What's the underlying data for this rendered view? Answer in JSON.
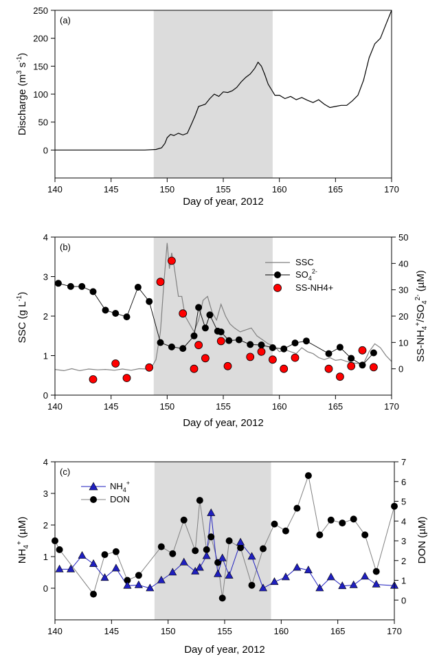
{
  "chart_data": [
    {
      "type": "line",
      "panel_label": "(a)",
      "xlabel": "Day of year, 2012",
      "ylabel": "Discharge (m3 s-1)",
      "ylabel_parts": {
        "base": "Discharge (m",
        "sup1": "3",
        "mid": " s",
        "sup2": "-1",
        "end": ")"
      },
      "xlim": [
        140,
        170
      ],
      "ylim": [
        -50,
        250
      ],
      "xticks": [
        140,
        145,
        150,
        155,
        160,
        165,
        170
      ],
      "yticks": [
        0,
        50,
        100,
        150,
        200,
        250
      ],
      "shaded_region": [
        148.8,
        159.4
      ],
      "series": [
        {
          "color": "#000000",
          "x": [
            140,
            142,
            144,
            146,
            148,
            149,
            149.5,
            149.8,
            150.0,
            150.3,
            150.6,
            151.0,
            151.4,
            151.8,
            152.2,
            152.5,
            152.8,
            153.1,
            153.4,
            153.8,
            154.2,
            154.6,
            155.0,
            155.4,
            155.8,
            156.2,
            156.6,
            157.0,
            157.4,
            157.8,
            158.1,
            158.4,
            158.7,
            159.0,
            159.3,
            159.6,
            160.0,
            160.5,
            161.0,
            161.5,
            162.0,
            162.5,
            163.0,
            163.5,
            164.0,
            164.5,
            165.0,
            165.5,
            166.0,
            166.5,
            167.0,
            167.5,
            168.0,
            168.5,
            169.0,
            169.5,
            170.0
          ],
          "y": [
            0,
            0,
            0,
            0,
            0,
            1,
            4,
            12,
            22,
            28,
            26,
            30,
            27,
            30,
            48,
            62,
            78,
            80,
            82,
            92,
            100,
            96,
            104,
            103,
            106,
            112,
            122,
            130,
            136,
            146,
            157,
            150,
            135,
            118,
            108,
            98,
            98,
            92,
            96,
            90,
            94,
            89,
            85,
            90,
            82,
            76,
            78,
            80,
            80,
            88,
            98,
            125,
            165,
            190,
            200,
            225,
            250
          ]
        }
      ]
    },
    {
      "type": "line+scatter",
      "panel_label": "(b)",
      "xlabel": "Day of year, 2012",
      "ylabel_left": "SSC (g L-1)",
      "ylabel_left_parts": {
        "base": "SSC (g L",
        "sup": "-1",
        "end": ")"
      },
      "ylabel_right": "SS-NH4+/SO42- (µM)",
      "ylabel_right_parts": {
        "a": "SS-NH",
        "a_sub": "4",
        "a_sup": "+",
        "b": "/SO",
        "b_sub": "4",
        "b_sup": "2-",
        "c": " (µM)"
      },
      "xlim": [
        140,
        170
      ],
      "ylim_left": [
        0,
        4
      ],
      "ylim_right": [
        -10,
        50
      ],
      "xticks": [
        140,
        145,
        150,
        155,
        160,
        165,
        170
      ],
      "yticks_left": [
        0,
        1,
        2,
        3,
        4
      ],
      "yticks_right": [
        0,
        10,
        20,
        30,
        40,
        50
      ],
      "shaded_region": [
        148.8,
        159.4
      ],
      "legend": [
        {
          "label": "SSC",
          "kind": "line"
        },
        {
          "label": "SO42-",
          "label_parts": {
            "base": "SO",
            "sub": "4",
            "sup": "2-"
          },
          "kind": "line-marker"
        },
        {
          "label": "SS-NH4+",
          "kind": "marker"
        }
      ],
      "series": [
        {
          "name": "SSC",
          "axis": "left",
          "color": "#808080",
          "x": [
            140,
            140.8,
            141.5,
            142.2,
            143,
            143.8,
            144.5,
            145.3,
            146,
            146.8,
            147.5,
            148.2,
            148.6,
            149.0,
            149.4,
            149.7,
            150.0,
            150.2,
            150.4,
            150.6,
            150.8,
            151.0,
            151.3,
            151.6,
            152.0,
            152.4,
            152.8,
            153.2,
            153.6,
            154.0,
            154.4,
            154.8,
            155.2,
            155.6,
            156.0,
            156.5,
            157.0,
            157.5,
            158.0,
            158.5,
            159.0,
            159.5,
            160.0,
            160.5,
            161.0,
            161.5,
            162.0,
            162.5,
            163.0,
            163.5,
            164.0,
            164.5,
            165.0,
            165.5,
            166.0,
            166.5,
            167.0,
            167.5,
            168.0,
            168.5,
            169.0,
            169.5,
            170.0
          ],
          "y": [
            0.65,
            0.62,
            0.67,
            0.62,
            0.66,
            0.64,
            0.65,
            0.63,
            0.66,
            0.63,
            0.67,
            0.66,
            0.7,
            0.9,
            1.6,
            2.8,
            3.85,
            3.2,
            3.6,
            3.3,
            2.9,
            2.5,
            2.5,
            2.0,
            1.8,
            1.6,
            1.9,
            2.4,
            2.5,
            2.1,
            1.9,
            2.3,
            2.0,
            1.8,
            1.7,
            1.6,
            1.65,
            1.7,
            1.5,
            1.4,
            1.3,
            1.25,
            1.1,
            1.15,
            1.1,
            1.05,
            1.2,
            1.1,
            1.05,
            0.95,
            0.9,
            0.95,
            0.88,
            0.9,
            0.85,
            0.82,
            0.8,
            0.8,
            1.1,
            1.3,
            1.2,
            1.0,
            0.85
          ]
        },
        {
          "name": "SO42-",
          "axis": "left",
          "color": "#000000",
          "marker": "circle",
          "x": [
            140.3,
            141.4,
            142.4,
            143.4,
            144.5,
            145.4,
            146.4,
            147.4,
            148.4,
            149.4,
            150.4,
            151.4,
            152.4,
            152.8,
            153.4,
            153.8,
            154.5,
            154.8,
            155.5,
            156.4,
            157.4,
            158.4,
            159.4,
            160.4,
            161.4,
            162.4,
            164.4,
            165.4,
            166.4,
            167.4,
            168.4
          ],
          "y": [
            2.83,
            2.75,
            2.75,
            2.62,
            2.15,
            2.07,
            1.98,
            2.73,
            2.37,
            1.33,
            1.22,
            1.18,
            1.5,
            2.22,
            1.7,
            2.03,
            1.62,
            1.6,
            1.38,
            1.4,
            1.28,
            1.27,
            1.2,
            1.17,
            1.32,
            1.37,
            1.05,
            1.21,
            0.93,
            0.76,
            1.07
          ]
        },
        {
          "name": "SS-NH4+",
          "axis": "right",
          "color": "#ff0000",
          "marker": "circle",
          "x": [
            143.4,
            145.4,
            146.4,
            148.4,
            149.4,
            150.4,
            151.4,
            152.4,
            152.8,
            153.4,
            154.8,
            155.4,
            157.4,
            158.4,
            159.4,
            160.4,
            161.4,
            164.4,
            165.4,
            166.4,
            167.4,
            168.4
          ],
          "y": [
            -4,
            2,
            -3.5,
            0.5,
            33,
            41,
            21,
            0,
            9,
            4,
            10.5,
            1,
            4.5,
            6.5,
            3.5,
            0,
            4.2,
            0,
            -3,
            1,
            7,
            0.6
          ]
        }
      ]
    },
    {
      "type": "line+scatter",
      "panel_label": "(c)",
      "xlabel": "Day of year, 2012",
      "ylabel_left": "NH4+ (µM)",
      "ylabel_left_parts": {
        "base": "NH",
        "sub": "4",
        "sup": "+",
        "end": " (µM)"
      },
      "ylabel_right": "DON (µM)",
      "xlim": [
        140,
        170
      ],
      "ylim_left": [
        -1,
        4
      ],
      "ylim_right": [
        -1,
        7
      ],
      "xticks": [
        140,
        145,
        150,
        155,
        160,
        165,
        170
      ],
      "yticks_left": [
        0,
        1,
        2,
        3,
        4
      ],
      "yticks_right": [
        0,
        1,
        2,
        3,
        4,
        5,
        6,
        7
      ],
      "shaded_region": [
        148.8,
        159.1
      ],
      "legend": [
        {
          "label": "NH4+",
          "label_parts": {
            "base": "NH",
            "sub": "4",
            "sup": "+"
          },
          "kind": "line-marker"
        },
        {
          "label": "DON",
          "kind": "line-marker"
        }
      ],
      "series": [
        {
          "name": "NH4+",
          "axis": "left",
          "color": "#1f1fbf",
          "marker": "triangle",
          "x": [
            140.4,
            141.4,
            142.4,
            143.4,
            144.4,
            145.4,
            146.4,
            147.4,
            148.4,
            149.4,
            150.4,
            151.4,
            152.4,
            152.8,
            153.4,
            153.8,
            154.4,
            154.8,
            155.4,
            156.4,
            157.4,
            158.4,
            159.4,
            160.4,
            161.4,
            162.4,
            163.4,
            164.4,
            165.4,
            166.4,
            167.4,
            168.4,
            170.0
          ],
          "y": [
            0.6,
            0.6,
            1.03,
            0.77,
            0.33,
            0.63,
            0.08,
            0.1,
            0.0,
            0.25,
            0.5,
            0.82,
            0.53,
            0.65,
            1.02,
            2.38,
            0.45,
            0.95,
            0.4,
            1.45,
            1.0,
            0.0,
            0.2,
            0.35,
            0.65,
            0.57,
            0.0,
            0.35,
            0.07,
            0.1,
            0.37,
            0.12,
            0.08
          ]
        },
        {
          "name": "DON",
          "axis": "right",
          "color": "#000000",
          "line_color": "#808080",
          "marker": "circle",
          "x": [
            140.0,
            140.4,
            143.4,
            144.4,
            145.4,
            146.4,
            147.4,
            149.4,
            150.4,
            151.4,
            152.4,
            152.8,
            153.4,
            153.8,
            154.4,
            154.8,
            155.4,
            156.4,
            157.4,
            158.4,
            159.4,
            160.4,
            161.4,
            162.4,
            163.4,
            164.4,
            165.4,
            166.4,
            167.4,
            168.4,
            170.0
          ],
          "y": [
            3.0,
            2.55,
            0.3,
            2.3,
            2.45,
            1.0,
            1.25,
            2.7,
            2.35,
            4.05,
            2.5,
            5.05,
            2.55,
            3.2,
            1.9,
            0.1,
            3.0,
            2.65,
            0.75,
            2.6,
            3.85,
            3.5,
            4.65,
            6.3,
            3.3,
            4.05,
            3.9,
            4.1,
            3.3,
            1.45,
            4.75
          ]
        }
      ]
    }
  ]
}
